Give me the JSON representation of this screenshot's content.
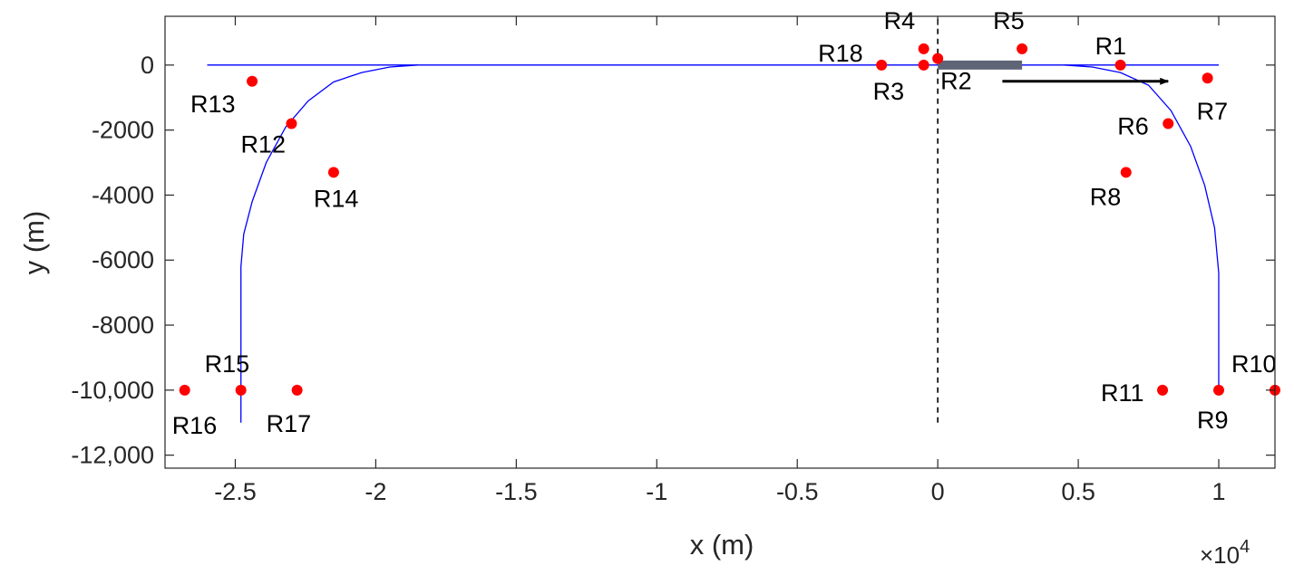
{
  "chart_data": {
    "type": "scatter",
    "xlabel": "x (m)",
    "ylabel": "y (m)",
    "x_exponent": "×10",
    "x_exponent_power": "4",
    "xlim": [
      -27500,
      12000
    ],
    "ylim": [
      -12400,
      1500
    ],
    "xticks": [
      {
        "value": -25000,
        "label": "-2.5"
      },
      {
        "value": -20000,
        "label": "-2"
      },
      {
        "value": -15000,
        "label": "-1.5"
      },
      {
        "value": -10000,
        "label": "-1"
      },
      {
        "value": -5000,
        "label": "-0.5"
      },
      {
        "value": 0,
        "label": "0"
      },
      {
        "value": 5000,
        "label": "0.5"
      },
      {
        "value": 10000,
        "label": "1"
      }
    ],
    "yticks": [
      {
        "value": 0,
        "label": "0"
      },
      {
        "value": -2000,
        "label": "-2000"
      },
      {
        "value": -4000,
        "label": "-4000"
      },
      {
        "value": -6000,
        "label": "-6000"
      },
      {
        "value": -8000,
        "label": "-8000"
      },
      {
        "value": -10000,
        "label": "-10,000"
      },
      {
        "value": -12000,
        "label": "-12,000"
      }
    ],
    "grid": false,
    "track": {
      "color": "#0000ff",
      "points": [
        [
          -24800,
          -11000
        ],
        [
          -24800,
          -6000
        ],
        [
          -24700,
          -5000
        ],
        [
          -24200,
          -3500
        ],
        [
          -23300,
          -2200
        ],
        [
          -22000,
          -1000
        ],
        [
          -21000,
          -500
        ],
        [
          -20000,
          -150
        ],
        [
          -18500,
          0
        ],
        [
          -26000,
          0
        ],
        [
          10000,
          0
        ],
        [
          8500,
          -150
        ],
        [
          9000,
          -600
        ],
        [
          9500,
          -2000
        ],
        [
          9800,
          -3000
        ],
        [
          10000,
          -6000
        ],
        [
          10000,
          -10000
        ]
      ],
      "segments": [
        [
          [
            -26000,
            0
          ],
          [
            10000,
            0
          ]
        ],
        [
          [
            -18500,
            0
          ],
          [
            -19500,
            -60
          ],
          [
            -20500,
            -230
          ],
          [
            -21500,
            -520
          ],
          [
            -22400,
            -1100
          ],
          [
            -23200,
            -1900
          ],
          [
            -23900,
            -3000
          ],
          [
            -24400,
            -4200
          ],
          [
            -24700,
            -5200
          ],
          [
            -24800,
            -6200
          ],
          [
            -24800,
            -11000
          ]
        ],
        [
          [
            4500,
            0
          ],
          [
            5500,
            -60
          ],
          [
            6500,
            -230
          ],
          [
            7500,
            -620
          ],
          [
            8300,
            -1400
          ],
          [
            9000,
            -2500
          ],
          [
            9500,
            -3700
          ],
          [
            9850,
            -5000
          ],
          [
            10000,
            -6400
          ],
          [
            10000,
            -10000
          ]
        ]
      ]
    },
    "divider": {
      "x": 0,
      "y_range": [
        -11000,
        2000
      ],
      "color": "#000000",
      "style": "dashed"
    },
    "source_bar": {
      "x_range": [
        0,
        3000
      ],
      "y": 0,
      "color": "#5f6577"
    },
    "direction_arrow": {
      "from": [
        2300,
        -500
      ],
      "to": [
        8200,
        -500
      ],
      "color": "#000000"
    },
    "marker_color": "#ff0000",
    "points": [
      {
        "label": "R1",
        "x": 6500,
        "y": 0
      },
      {
        "label": "R2",
        "x": 0,
        "y": 200
      },
      {
        "label": "R3",
        "x": -500,
        "y": 0
      },
      {
        "label": "R4",
        "x": -500,
        "y": 500
      },
      {
        "label": "R5",
        "x": 3000,
        "y": 500
      },
      {
        "label": "R6",
        "x": 8200,
        "y": -1800
      },
      {
        "label": "R7",
        "x": 9600,
        "y": -400
      },
      {
        "label": "R8",
        "x": 6700,
        "y": -3300
      },
      {
        "label": "R9",
        "x": 10000,
        "y": -10000
      },
      {
        "label": "R10",
        "x": 12000,
        "y": -10000
      },
      {
        "label": "R11",
        "x": 8000,
        "y": -10000
      },
      {
        "label": "R12",
        "x": -23000,
        "y": -1800
      },
      {
        "label": "R13",
        "x": -24400,
        "y": -500
      },
      {
        "label": "R14",
        "x": -21500,
        "y": -3300
      },
      {
        "label": "R15",
        "x": -24800,
        "y": -10000
      },
      {
        "label": "R16",
        "x": -26800,
        "y": -10000
      },
      {
        "label": "R17",
        "x": -22800,
        "y": -10000
      },
      {
        "label": "R18",
        "x": -2000,
        "y": 0
      }
    ]
  }
}
